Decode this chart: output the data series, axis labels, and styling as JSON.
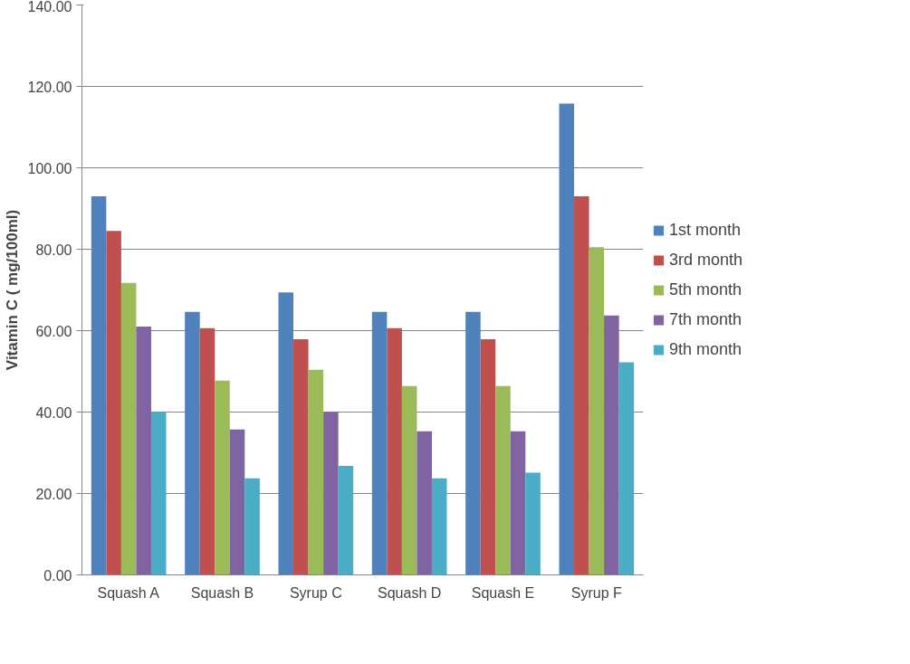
{
  "chart_data": {
    "type": "bar",
    "ylabel": "Vitamin C ( mg/100ml)",
    "categories": [
      "Squash A",
      "Squash B",
      "Syrup C",
      "Squash D",
      "Squash E",
      "Syrup F"
    ],
    "series": [
      {
        "name": "1st month",
        "color": "#4f81bd",
        "values": [
          93,
          64.6,
          69.4,
          64.6,
          64.6,
          115.8
        ]
      },
      {
        "name": "3rd month",
        "color": "#c0504d",
        "values": [
          84.5,
          60.6,
          57.9,
          60.6,
          57.9,
          93
        ]
      },
      {
        "name": "5th month",
        "color": "#9bbb59",
        "values": [
          71.7,
          47.7,
          50.4,
          46.4,
          46.4,
          80.5
        ]
      },
      {
        "name": "7th month",
        "color": "#8064a2",
        "values": [
          61,
          35.7,
          40,
          35.3,
          35.3,
          63.7
        ]
      },
      {
        "name": "9th month",
        "color": "#4bacc6",
        "values": [
          40,
          23.7,
          26.8,
          23.7,
          25.1,
          52.2
        ]
      }
    ],
    "ylim": [
      0,
      140
    ],
    "yticks": [
      {
        "value": 0,
        "label": "0.00"
      },
      {
        "value": 20,
        "label": "20.00"
      },
      {
        "value": 40,
        "label": "40.00"
      },
      {
        "value": 60,
        "label": "60.00"
      },
      {
        "value": 80,
        "label": "80.00"
      },
      {
        "value": 100,
        "label": "100.00"
      },
      {
        "value": 120,
        "label": "120.00"
      },
      {
        "value": 140,
        "label": "140.00"
      }
    ],
    "grid": "y",
    "legend": "right"
  }
}
